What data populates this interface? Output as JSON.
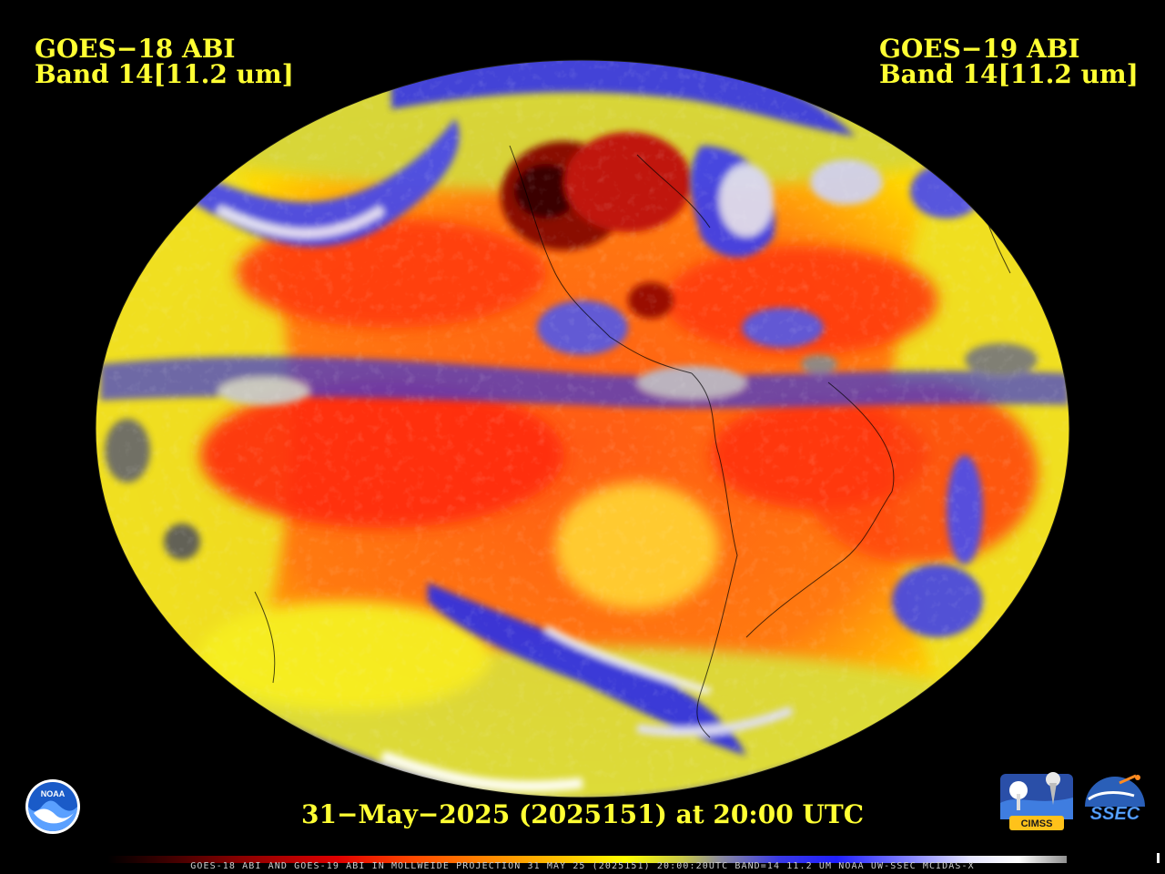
{
  "left_title": {
    "line1": "GOES−18 ABI",
    "line2": "Band 14[11.2 um]"
  },
  "right_title": {
    "line1": "GOES−19 ABI",
    "line2": "Band 14[11.2 um]"
  },
  "timestamp": "31−May−2025 (2025151) at 20:00 UTC",
  "footer": "GOES-18 ABI AND GOES-19 ABI IN MOLLWEIDE PROJECTION 31 MAY 25 (2025151) 20:00:20UTC BAND=14 11.2 UM NOAA UW-SSEC MCIDAS-X",
  "logos": {
    "noaa": "NOAA",
    "cimss": "CIMSS",
    "ssec": "SSEC"
  },
  "colors": {
    "title_yellow": "#ffff33",
    "background": "#000000",
    "warm_orange": "#ff5a10",
    "cold_blue": "#2a30f0"
  }
}
